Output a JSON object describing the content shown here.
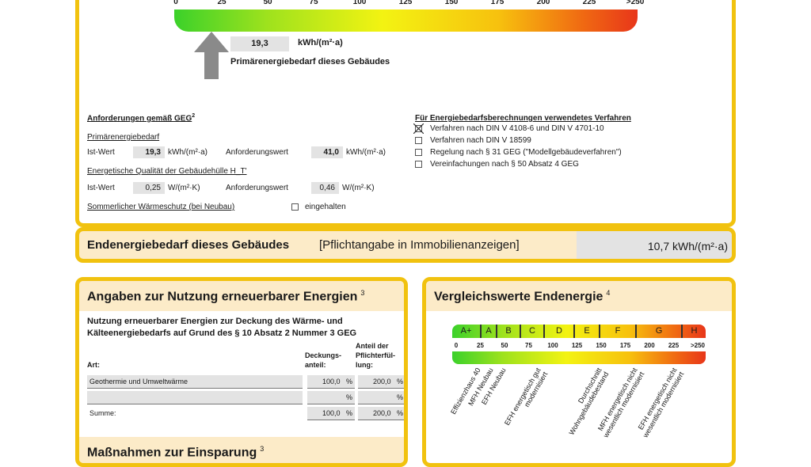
{
  "primary": {
    "ticks": [
      "0",
      "25",
      "50",
      "75",
      "100",
      "125",
      "150",
      "175",
      "200",
      "225",
      ">250"
    ],
    "value": "19,3",
    "unit": "kWh/(m²·a)",
    "label": "Primärenergiebedarf dieses Gebäudes",
    "scale_max": 250,
    "value_num": 19.3
  },
  "requirements": {
    "title": "Anforderungen gemäß GEG",
    "title_sup": "2",
    "primary_title": "Primärenergiebedarf",
    "ist_label": "Ist-Wert",
    "ist_value": "19,3",
    "ist_unit": "kWh/(m²·a)",
    "req_label": "Anforderungswert",
    "req_value": "41,0",
    "req_unit": "kWh/(m²·a)",
    "envelope_title": "Energetische Qualität der Gebäudehülle H_T'",
    "env_ist_label": "Ist-Wert",
    "env_ist_value": "0,25",
    "env_ist_unit": "W/(m²·K)",
    "env_req_label": "Anforderungswert",
    "env_req_value": "0,46",
    "env_req_unit": "W/(m²·K)",
    "summer_title": "Sommerlicher Wärmeschutz (bei Neubau)",
    "summer_check_label": "eingehalten",
    "summer_checked": false
  },
  "method": {
    "title": "Für Energiebedarfsberechnungen verwendetes Verfahren",
    "options": [
      {
        "label": "Verfahren nach DIN V 4108-6 und DIN V 4701-10",
        "checked": true
      },
      {
        "label": "Verfahren nach DIN V 18599",
        "checked": false
      },
      {
        "label": "Regelung nach § 31 GEG (\"Modellgebäudeverfahren\")",
        "checked": false
      },
      {
        "label": "Vereinfachungen nach § 50 Absatz 4 GEG",
        "checked": false
      }
    ]
  },
  "final": {
    "title": "Endenergiebedarf dieses Gebäudes",
    "note": "[Pflichtangabe in Immobilienanzeigen]",
    "value": "10,7 kWh/(m²·a)"
  },
  "renewable": {
    "title": "Angaben zur Nutzung erneuerbarer Energien",
    "sup": "3",
    "subtitle1": "Nutzung erneuerbarer Energien zur Deckung des Wärme- und",
    "subtitle2": "Kälteenergiebedarfs auf Grund des § 10 Absatz 2 Nummer 3 GEG",
    "col_art": "Art:",
    "col_deck1": "Deckungs-",
    "col_deck2": "anteil:",
    "col_ant1": "Anteil der",
    "col_ant2": "Pflichterfül-",
    "col_ant3": "lung:",
    "rows": [
      {
        "art": "Geothermie und Umweltwärme",
        "deck": "100,0",
        "ant": "200,0"
      },
      {
        "art": "",
        "deck": "",
        "ant": ""
      }
    ],
    "sum_label": "Summe:",
    "sum_deck": "100,0",
    "sum_ant": "200,0",
    "pct": "%"
  },
  "measures": {
    "title": "Maßnahmen zur Einsparung",
    "sup": "3"
  },
  "compare": {
    "title": "Vergleichswerte Endenergie",
    "sup": "4",
    "classes": [
      "A+",
      "A",
      "B",
      "C",
      "D",
      "E",
      "F",
      "G",
      "H"
    ],
    "ticks": [
      "0",
      "25",
      "50",
      "75",
      "100",
      "125",
      "150",
      "175",
      "200",
      "225",
      ">250"
    ],
    "refs": [
      "Effizienzhaus 40",
      "MFH Neubau",
      "EFH Neubau",
      "EFH energetisch gut modernisiert",
      "Durchschnitt Wohngebäudebestand",
      "MFH energetisch nicht wesentlich modernisiert",
      "EFH energetisch nicht wesentlich modernisiert"
    ],
    "colors": {
      "border": "#f1c20f",
      "header": "#fcebc8"
    }
  }
}
